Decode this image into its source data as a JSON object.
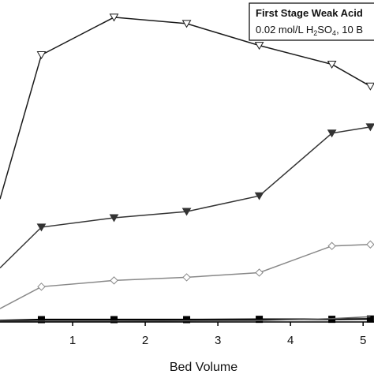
{
  "chart_data": {
    "type": "line",
    "xlabel": "Bed Volume",
    "ylabel": "",
    "xlim": [
      0,
      5.15
    ],
    "ylim": [
      0,
      1.0
    ],
    "x_ticks": [
      "1",
      "2",
      "3",
      "4",
      "5"
    ],
    "grid": false,
    "legend": {
      "placement": "top-right",
      "title": "First Stage Weak Acid",
      "subtitle_parts": [
        "0.02 mol/L H",
        "2",
        "SO",
        "4",
        ", 10 B"
      ]
    },
    "series": [
      {
        "marker": "open-triangle-down",
        "color": "#1a1a1a",
        "x": [
          0,
          0.57,
          1.57,
          2.57,
          3.57,
          4.57,
          5.1
        ],
        "y": [
          0.39,
          0.85,
          0.97,
          0.95,
          0.88,
          0.82,
          0.75
        ]
      },
      {
        "marker": "filled-triangle-down",
        "color": "#333333",
        "x": [
          0,
          0.57,
          1.57,
          2.57,
          3.57,
          4.57,
          5.1
        ],
        "y": [
          0.17,
          0.3,
          0.33,
          0.35,
          0.4,
          0.6,
          0.62
        ]
      },
      {
        "marker": "open-diamond",
        "color": "#888888",
        "x": [
          0,
          0.57,
          1.57,
          2.57,
          3.57,
          4.57,
          5.1
        ],
        "y": [
          0.04,
          0.11,
          0.13,
          0.14,
          0.155,
          0.24,
          0.245
        ]
      },
      {
        "marker": "filled-square",
        "color": "#000000",
        "x": [
          0,
          0.57,
          1.57,
          2.57,
          3.57,
          4.57,
          5.1
        ],
        "y": [
          0.002,
          0.005,
          0.005,
          0.005,
          0.006,
          0.006,
          0.007
        ]
      },
      {
        "marker": "none",
        "color": "#666666",
        "x": [
          0,
          0.57,
          1.57,
          2.57,
          3.57,
          4.57,
          5.1
        ],
        "y": [
          0.0,
          0.0,
          0.0,
          0.001,
          0.002,
          0.008,
          0.014
        ]
      }
    ]
  }
}
